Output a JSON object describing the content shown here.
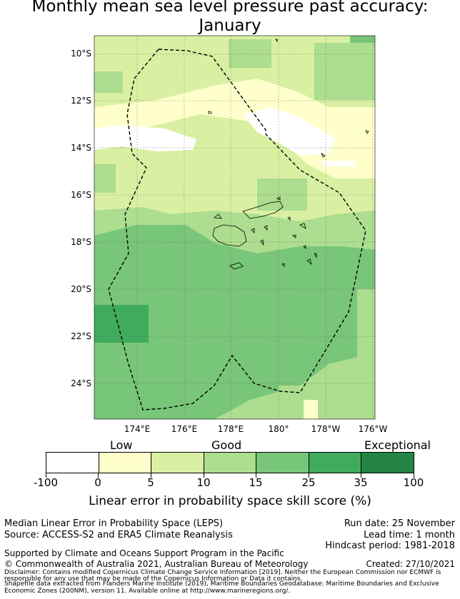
{
  "title": {
    "line1": "Monthly mean sea level pressure past accuracy:",
    "line2": "January"
  },
  "map": {
    "lat_labels": [
      "10°S",
      "12°S",
      "14°S",
      "16°S",
      "18°S",
      "20°S",
      "22°S",
      "24°S"
    ],
    "lon_labels": [
      "174°E",
      "176°E",
      "178°E",
      "180°",
      "178°W",
      "176°W"
    ],
    "colors": {
      "white": "#ffffff",
      "cream": "#ffffcc",
      "pale": "#d9f0a3",
      "light": "#addd8e",
      "mid": "#78c679",
      "dark": "#41ab5d",
      "darkest": "#238443"
    }
  },
  "legend": {
    "categories": [
      "Low",
      "Good",
      "Exceptional"
    ],
    "ticks": [
      "-100",
      "0",
      "5",
      "10",
      "15",
      "25",
      "35",
      "100"
    ],
    "segment_colors": [
      "#ffffff",
      "#ffffcc",
      "#d9f0a3",
      "#addd8e",
      "#78c679",
      "#41ab5d",
      "#238443"
    ],
    "label": "Linear error in probability space skill score (%)"
  },
  "info": {
    "method": "Median Linear Error in Probability Space (LEPS)",
    "source": "Source: ACCESS-S2 and ERA5 Climate Reanalysis",
    "run_date": "Run date: 25 November",
    "lead_time": "Lead time: 1 month",
    "hindcast": "Hindcast period: 1981-2018",
    "support": "Supported by Climate and Oceans Support Program in the Pacific",
    "copyright": "© Commonwealth of Australia 2021, Australian Bureau of Meteorology",
    "created": "Created: 27/10/2021",
    "disclaimer1": "Disclaimer: Contains modified Copernicus Climate Change Service Information [2019]. Neither the European Commission nor ECMWF is",
    "disclaimer2": "responsible for any use that may be made of the Copernicus Information or Data it contains.",
    "disclaimer3": "Shapefile data extracted from Flanders Marine Institute (2019), Maritime Boundaries Geodatabase: Maritime Boundaries and Exclusive",
    "disclaimer4": "Economic Zones (200NM), version 11. Available online at http://www.marineregions.org/."
  }
}
